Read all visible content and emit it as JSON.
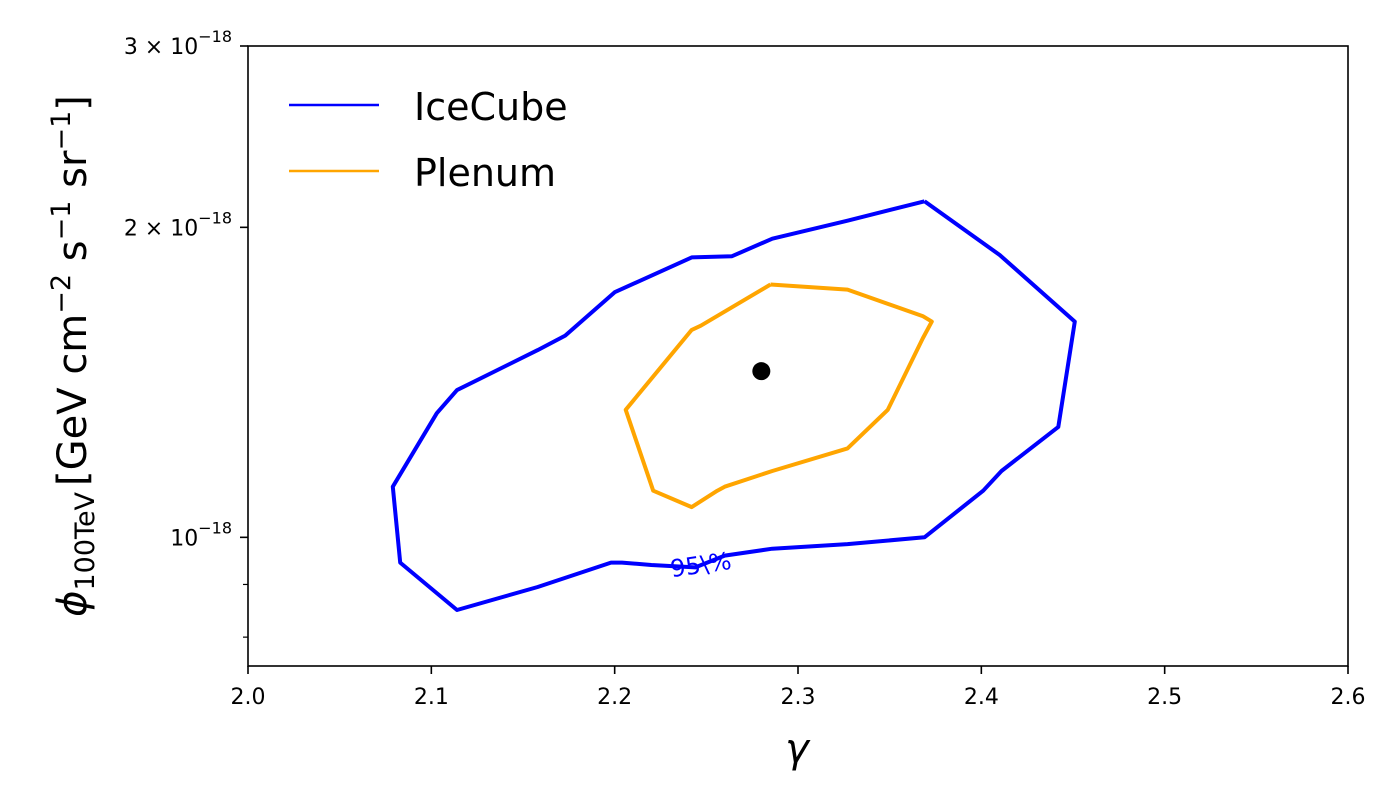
{
  "chart_data": {
    "type": "line",
    "title": "",
    "xlabel": "γ",
    "ylabel": {
      "symbol": "ϕ",
      "subscript": "100TeV",
      "units_prefix": "[GeV cm",
      "exp1": "−2",
      "mid1": " s",
      "exp2": "−1",
      "mid2": " sr",
      "exp3": "−1",
      "units_suffix": "]"
    },
    "xlim": [
      2.0,
      2.6
    ],
    "ylim": [
      7.5e-19,
      3e-18
    ],
    "yscale": "log",
    "grid": false,
    "legend_position": "top-left",
    "x_ticks": [
      {
        "value": 2.0,
        "label": "2.0"
      },
      {
        "value": 2.1,
        "label": "2.1"
      },
      {
        "value": 2.2,
        "label": "2.2"
      },
      {
        "value": 2.3,
        "label": "2.3"
      },
      {
        "value": 2.4,
        "label": "2.4"
      },
      {
        "value": 2.5,
        "label": "2.5"
      },
      {
        "value": 2.6,
        "label": "2.6"
      }
    ],
    "y_ticks": [
      {
        "value": 1e-18,
        "base": "10",
        "exp": "−18"
      },
      {
        "value": 2e-18,
        "base": "2 × 10",
        "exp": "−18"
      },
      {
        "value": 3e-18,
        "base": "3 × 10",
        "exp": "−18"
      }
    ],
    "y_minor_ticks": [
      8e-19,
      9e-19
    ],
    "series": [
      {
        "name": "IceCube",
        "color": "#0000ff",
        "points": [
          [
            2.369,
            2.12e-18
          ],
          [
            2.41,
            1.88e-18
          ],
          [
            2.451,
            1.62e-18
          ],
          [
            2.442,
            1.28e-18
          ],
          [
            2.411,
            1.16e-18
          ],
          [
            2.401,
            1.11e-18
          ],
          [
            2.369,
            1e-18
          ],
          [
            2.327,
            9.85e-19
          ],
          [
            2.286,
            9.75e-19
          ],
          [
            2.26,
            9.6e-19
          ],
          [
            2.244,
            9.35e-19
          ],
          [
            2.22,
            9.4e-19
          ],
          [
            2.204,
            9.45e-19
          ],
          [
            2.198,
            9.45e-19
          ],
          [
            2.158,
            8.95e-19
          ],
          [
            2.114,
            8.5e-19
          ],
          [
            2.083,
            9.45e-19
          ],
          [
            2.079,
            1.12e-18
          ],
          [
            2.103,
            1.32e-18
          ],
          [
            2.114,
            1.39e-18
          ],
          [
            2.158,
            1.52e-18
          ],
          [
            2.173,
            1.57e-18
          ],
          [
            2.2,
            1.73e-18
          ],
          [
            2.242,
            1.87e-18
          ],
          [
            2.264,
            1.875e-18
          ],
          [
            2.286,
            1.95e-18
          ],
          [
            2.327,
            2.03e-18
          ],
          [
            2.369,
            2.12e-18
          ]
        ]
      },
      {
        "name": "Plenum",
        "color": "#ffa500",
        "points": [
          [
            2.285,
            1.76e-18
          ],
          [
            2.327,
            1.74e-18
          ],
          [
            2.368,
            1.64e-18
          ],
          [
            2.373,
            1.62e-18
          ],
          [
            2.368,
            1.56e-18
          ],
          [
            2.349,
            1.33e-18
          ],
          [
            2.327,
            1.22e-18
          ],
          [
            2.286,
            1.16e-18
          ],
          [
            2.26,
            1.12e-18
          ],
          [
            2.256,
            1.11e-18
          ],
          [
            2.242,
            1.07e-18
          ],
          [
            2.221,
            1.11e-18
          ],
          [
            2.206,
            1.33e-18
          ],
          [
            2.242,
            1.59e-18
          ],
          [
            2.247,
            1.605e-18
          ],
          [
            2.285,
            1.76e-18
          ]
        ]
      }
    ],
    "best_fit": {
      "x": 2.28,
      "y": 1.45e-18,
      "color": "#000000"
    },
    "annotations": [
      {
        "text": "95\\%",
        "x": 2.247,
        "y": 9.4e-19,
        "rotation": -8,
        "color": "#0000ff"
      }
    ]
  }
}
